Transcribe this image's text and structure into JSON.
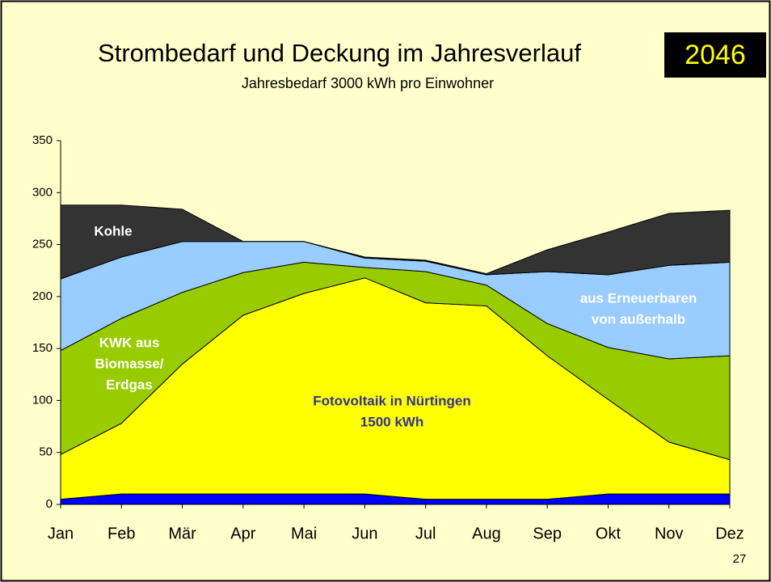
{
  "chart_data": {
    "type": "stacked_area",
    "title": "Strombedarf und Deckung im Jahresverlauf",
    "badge": "2046",
    "subtitle": "Jahresbedarf 3000 kWh pro Einwohner",
    "page_number": "27",
    "categories": [
      "Jan",
      "Feb",
      "Mär",
      "Apr",
      "Mai",
      "Jun",
      "Jul",
      "Aug",
      "Sep",
      "Okt",
      "Nov",
      "Dez"
    ],
    "ylim": [
      0,
      350
    ],
    "yticks": [
      0,
      50,
      100,
      150,
      200,
      250,
      300,
      350
    ],
    "grid": false,
    "series": [
      {
        "color": "#0000ff",
        "values": [
          5,
          10,
          10,
          10,
          10,
          10,
          5,
          5,
          5,
          10,
          10,
          10
        ]
      },
      {
        "color": "#ffff00",
        "label": [
          "Fotovoltaik in Nürtingen",
          "1500 kWh"
        ],
        "values": [
          43,
          68,
          125,
          172,
          193,
          208,
          189,
          186,
          138,
          91,
          50,
          33
        ]
      },
      {
        "color": "#99cc00",
        "label": [
          "KWK aus",
          "Biomasse/",
          "Erdgas"
        ],
        "values": [
          100,
          101,
          69,
          41,
          30,
          10,
          30,
          20,
          31,
          50,
          80,
          100
        ]
      },
      {
        "color": "#99ccff",
        "label": [
          "aus Erneuerbaren",
          "von außerhalb"
        ],
        "values": [
          69,
          59,
          49,
          30,
          20,
          9,
          10,
          10,
          50,
          70,
          90,
          90
        ]
      },
      {
        "color": "#333333",
        "label": [
          "Kohle"
        ],
        "values": [
          71,
          50,
          31,
          0,
          0,
          1,
          1,
          1,
          21,
          41,
          50,
          50
        ]
      }
    ]
  }
}
